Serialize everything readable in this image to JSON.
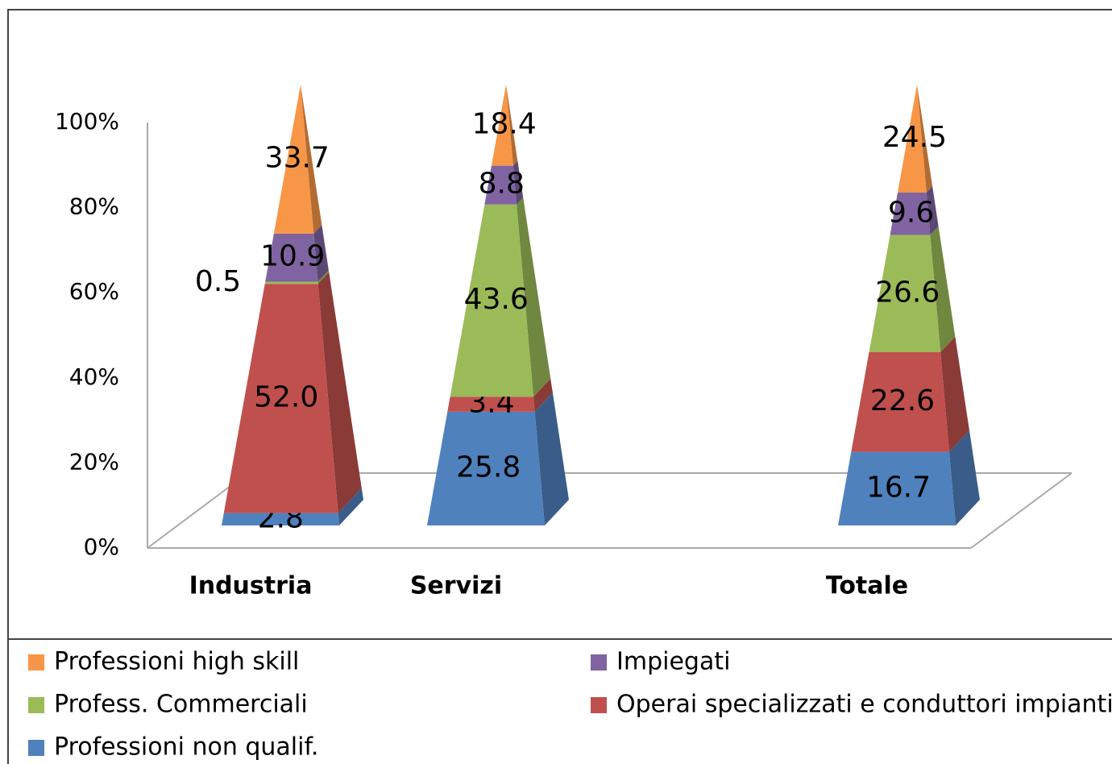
{
  "chart_data": {
    "type": "pyramid3d",
    "categories": [
      "Industria",
      "Servizi",
      null,
      "Totale"
    ],
    "series": [
      {
        "name": "Professioni non qualif.",
        "color": "#4f81bd",
        "values": [
          2.8,
          25.8,
          null,
          16.7
        ]
      },
      {
        "name": "Operai specializzati e conduttori impianti",
        "color": "#c0504d",
        "values": [
          52,
          3.4,
          null,
          22.6
        ],
        "value_labels": [
          "52.0",
          "3.4",
          null,
          "22.6"
        ]
      },
      {
        "name": "Profess. Commerciali",
        "color": "#9bbb59",
        "values": [
          0.5,
          43.6,
          null,
          26.6
        ]
      },
      {
        "name": "Impiegati",
        "color": "#8064a2",
        "values": [
          10.9,
          8.8,
          null,
          9.6
        ]
      },
      {
        "name": "Professioni high skill",
        "color": "#f79646",
        "values": [
          33.7,
          18.4,
          null,
          24.5
        ]
      }
    ],
    "ylim": [
      0,
      100
    ],
    "yticks": [
      {
        "value": 0,
        "label": "0%"
      },
      {
        "value": 20,
        "label": "20%"
      },
      {
        "value": 40,
        "label": "40%"
      },
      {
        "value": 60,
        "label": "60%"
      },
      {
        "value": 80,
        "label": "80%"
      },
      {
        "value": 100,
        "label": "100%"
      }
    ],
    "legend": "bottom"
  }
}
